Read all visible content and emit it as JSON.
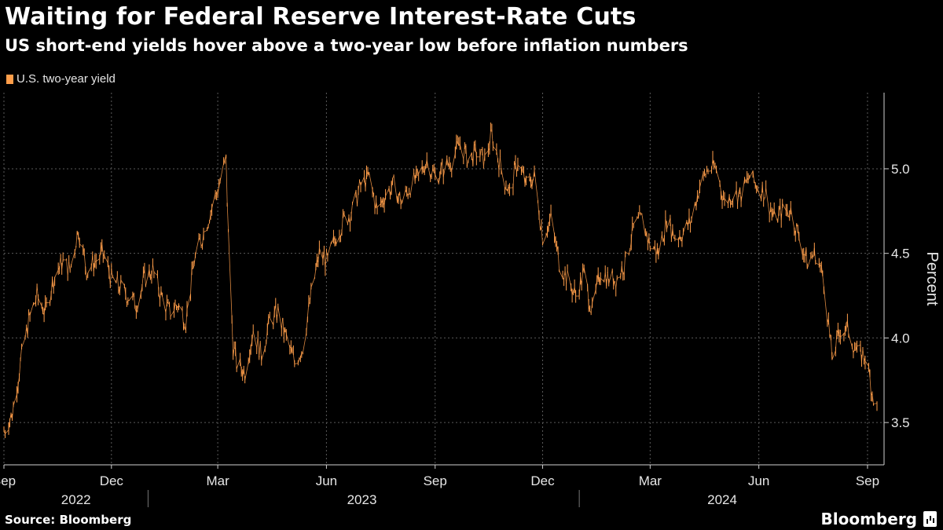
{
  "header": {
    "title": "Waiting for Federal Reserve Interest-Rate Cuts",
    "subtitle": "US short-end yields hover above a two-year low before inflation numbers"
  },
  "footer": {
    "source": "Source: Bloomberg",
    "brand": "Bloomberg"
  },
  "chart_data": {
    "type": "line",
    "style": "daily high-low bars",
    "series": [
      {
        "name": "U.S. two-year yield",
        "color": "#ff9e4a",
        "points": [
          [
            "2022-09-01",
            3.45
          ],
          [
            "2022-09-08",
            3.55
          ],
          [
            "2022-09-15",
            3.85
          ],
          [
            "2022-09-22",
            4.1
          ],
          [
            "2022-09-29",
            4.25
          ],
          [
            "2022-10-06",
            4.15
          ],
          [
            "2022-10-13",
            4.35
          ],
          [
            "2022-10-20",
            4.45
          ],
          [
            "2022-10-27",
            4.4
          ],
          [
            "2022-11-03",
            4.65
          ],
          [
            "2022-11-10",
            4.4
          ],
          [
            "2022-11-17",
            4.45
          ],
          [
            "2022-11-24",
            4.5
          ],
          [
            "2022-12-01",
            4.35
          ],
          [
            "2022-12-08",
            4.3
          ],
          [
            "2022-12-15",
            4.25
          ],
          [
            "2022-12-22",
            4.2
          ],
          [
            "2022-12-29",
            4.35
          ],
          [
            "2023-01-05",
            4.4
          ],
          [
            "2023-01-12",
            4.25
          ],
          [
            "2023-01-19",
            4.15
          ],
          [
            "2023-01-26",
            4.2
          ],
          [
            "2023-02-02",
            4.1
          ],
          [
            "2023-02-09",
            4.45
          ],
          [
            "2023-02-16",
            4.6
          ],
          [
            "2023-02-23",
            4.75
          ],
          [
            "2023-03-02",
            4.9
          ],
          [
            "2023-03-08",
            5.05
          ],
          [
            "2023-03-10",
            4.6
          ],
          [
            "2023-03-14",
            3.95
          ],
          [
            "2023-03-17",
            3.85
          ],
          [
            "2023-03-24",
            3.8
          ],
          [
            "2023-03-31",
            4.05
          ],
          [
            "2023-04-07",
            3.9
          ],
          [
            "2023-04-14",
            4.1
          ],
          [
            "2023-04-21",
            4.15
          ],
          [
            "2023-04-28",
            4.0
          ],
          [
            "2023-05-05",
            3.85
          ],
          [
            "2023-05-12",
            3.95
          ],
          [
            "2023-05-19",
            4.25
          ],
          [
            "2023-05-26",
            4.5
          ],
          [
            "2023-06-02",
            4.45
          ],
          [
            "2023-06-09",
            4.6
          ],
          [
            "2023-06-16",
            4.7
          ],
          [
            "2023-06-23",
            4.75
          ],
          [
            "2023-06-30",
            4.9
          ],
          [
            "2023-07-07",
            4.95
          ],
          [
            "2023-07-14",
            4.75
          ],
          [
            "2023-07-21",
            4.85
          ],
          [
            "2023-07-28",
            4.9
          ],
          [
            "2023-08-04",
            4.8
          ],
          [
            "2023-08-11",
            4.9
          ],
          [
            "2023-08-18",
            4.95
          ],
          [
            "2023-08-25",
            5.05
          ],
          [
            "2023-09-01",
            4.95
          ],
          [
            "2023-09-08",
            5.0
          ],
          [
            "2023-09-15",
            5.05
          ],
          [
            "2023-09-22",
            5.15
          ],
          [
            "2023-09-29",
            5.05
          ],
          [
            "2023-10-06",
            5.1
          ],
          [
            "2023-10-13",
            5.05
          ],
          [
            "2023-10-19",
            5.2
          ],
          [
            "2023-10-27",
            5.0
          ],
          [
            "2023-11-03",
            4.85
          ],
          [
            "2023-11-10",
            5.05
          ],
          [
            "2023-11-17",
            4.9
          ],
          [
            "2023-11-24",
            4.95
          ],
          [
            "2023-12-01",
            4.6
          ],
          [
            "2023-12-08",
            4.7
          ],
          [
            "2023-12-15",
            4.45
          ],
          [
            "2023-12-22",
            4.35
          ],
          [
            "2023-12-29",
            4.25
          ],
          [
            "2024-01-05",
            4.38
          ],
          [
            "2024-01-12",
            4.15
          ],
          [
            "2024-01-19",
            4.4
          ],
          [
            "2024-01-26",
            4.35
          ],
          [
            "2024-02-02",
            4.35
          ],
          [
            "2024-02-09",
            4.45
          ],
          [
            "2024-02-16",
            4.65
          ],
          [
            "2024-02-23",
            4.7
          ],
          [
            "2024-03-01",
            4.55
          ],
          [
            "2024-03-08",
            4.5
          ],
          [
            "2024-03-15",
            4.7
          ],
          [
            "2024-03-22",
            4.6
          ],
          [
            "2024-03-29",
            4.62
          ],
          [
            "2024-04-05",
            4.7
          ],
          [
            "2024-04-12",
            4.9
          ],
          [
            "2024-04-19",
            5.0
          ],
          [
            "2024-04-26",
            5.0
          ],
          [
            "2024-05-03",
            4.8
          ],
          [
            "2024-05-10",
            4.85
          ],
          [
            "2024-05-17",
            4.85
          ],
          [
            "2024-05-24",
            4.95
          ],
          [
            "2024-05-31",
            4.9
          ],
          [
            "2024-06-07",
            4.85
          ],
          [
            "2024-06-14",
            4.7
          ],
          [
            "2024-06-21",
            4.75
          ],
          [
            "2024-06-28",
            4.75
          ],
          [
            "2024-07-05",
            4.6
          ],
          [
            "2024-07-12",
            4.45
          ],
          [
            "2024-07-19",
            4.5
          ],
          [
            "2024-07-26",
            4.35
          ],
          [
            "2024-08-02",
            3.88
          ],
          [
            "2024-08-09",
            4.05
          ],
          [
            "2024-08-16",
            4.05
          ],
          [
            "2024-08-23",
            3.9
          ],
          [
            "2024-08-30",
            3.9
          ],
          [
            "2024-09-06",
            3.65
          ],
          [
            "2024-09-09",
            3.58
          ]
        ]
      }
    ],
    "xlabels": [
      {
        "date": "2022-09-01",
        "label": "Sep"
      },
      {
        "date": "2022-12-01",
        "label": "Dec"
      },
      {
        "date": "2023-03-01",
        "label": "Mar"
      },
      {
        "date": "2023-06-01",
        "label": "Jun"
      },
      {
        "date": "2023-09-01",
        "label": "Sep"
      },
      {
        "date": "2023-12-01",
        "label": "Dec"
      },
      {
        "date": "2024-03-01",
        "label": "Mar"
      },
      {
        "date": "2024-06-01",
        "label": "Jun"
      },
      {
        "date": "2024-09-01",
        "label": "Sep"
      }
    ],
    "years": [
      {
        "label": "2022",
        "center": "2022-11-01"
      },
      {
        "label": "2023",
        "center": "2023-07-01"
      },
      {
        "label": "2024",
        "center": "2024-05-01"
      }
    ],
    "year_dividers": [
      "2023-01-01",
      "2024-01-01"
    ],
    "xlim": [
      "2022-09-01",
      "2024-09-15"
    ],
    "ylim": [
      3.25,
      5.45
    ],
    "yticks": [
      3.5,
      4.0,
      4.5,
      5.0
    ],
    "ylabel": "Percent",
    "yaxis_side": "right",
    "grid": true,
    "legend_position": "top-left"
  }
}
